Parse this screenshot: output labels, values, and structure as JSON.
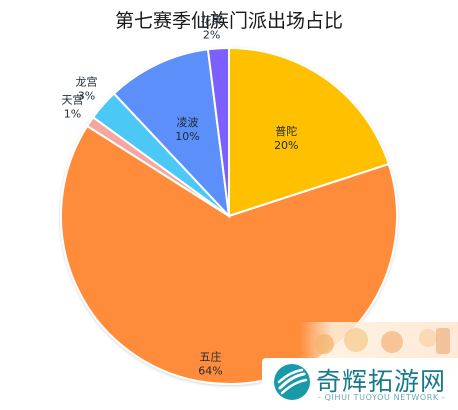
{
  "chart_data": {
    "type": "pie",
    "title": "第七赛季仙族门派出场占比",
    "slices": [
      {
        "name": "普陀",
        "value": 20,
        "label": "20%",
        "color": "#FFC000"
      },
      {
        "name": "五庄",
        "value": 64,
        "label": "64%",
        "color": "#FF8C3A"
      },
      {
        "name": "天宫",
        "value": 1,
        "label": "1%",
        "color": "#F4A6A0"
      },
      {
        "name": "龙宫",
        "value": 3,
        "label": "3%",
        "color": "#4BC8F5"
      },
      {
        "name": "凌波",
        "value": 10,
        "label": "10%",
        "color": "#5B8FF9"
      },
      {
        "name": "花果",
        "value": 2,
        "label": "2%",
        "color": "#7B61FF"
      }
    ],
    "start_angle_deg": 0,
    "direction": "clockwise",
    "legend": "none"
  },
  "watermark": {
    "name": "奇辉拓游网",
    "subtitle": "- QIHUI TUOYOU NETWORK -",
    "emblem_icon": "circle-stripes-icon",
    "accent_color": "#1A7A8C"
  }
}
